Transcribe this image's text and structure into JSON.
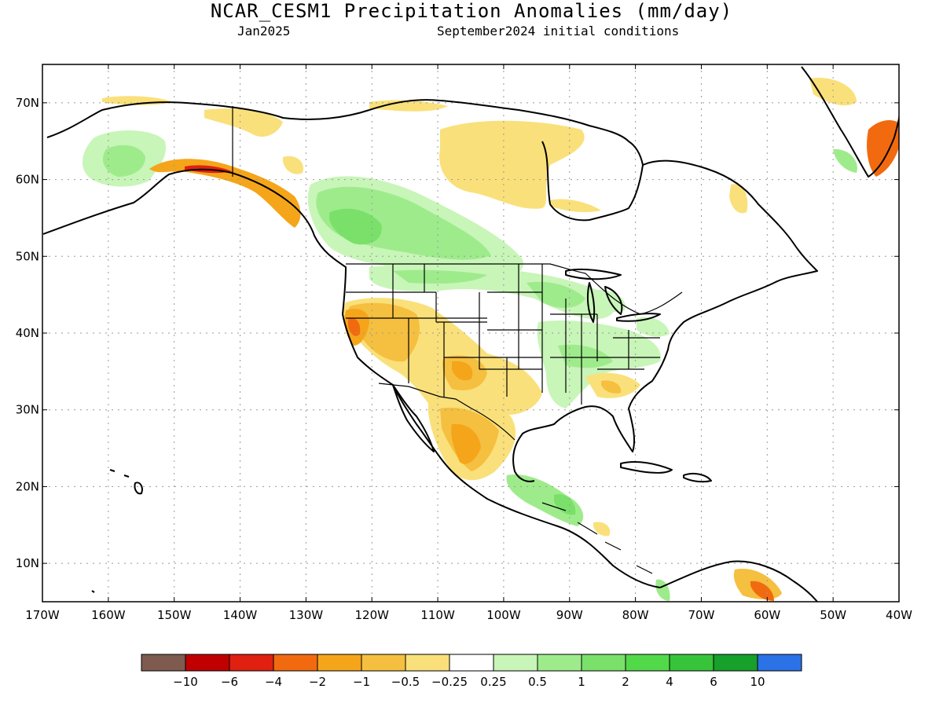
{
  "title": "NCAR_CESM1 Precipitation Anomalies (mm/day)",
  "subtitle_left": "Jan2025",
  "subtitle_right": "September2024 initial conditions",
  "map": {
    "lat_ticks": [
      "70N",
      "60N",
      "50N",
      "40N",
      "30N",
      "20N",
      "10N"
    ],
    "lon_ticks": [
      "170W",
      "160W",
      "150W",
      "140W",
      "130W",
      "120W",
      "110W",
      "100W",
      "90W",
      "80W",
      "70W",
      "60W",
      "50W",
      "40W"
    ],
    "lon_range": [
      -170,
      -40
    ],
    "lat_range": [
      5,
      75
    ]
  },
  "colorbar": {
    "colors": [
      "#7f5a4f",
      "#c00000",
      "#e02010",
      "#f26a10",
      "#f5a51a",
      "#f5bf40",
      "#fae07a",
      "#ffffff",
      "#c8f5b8",
      "#9eeb8c",
      "#7ae06a",
      "#52d94a",
      "#37c43a",
      "#17a02a",
      "#2a72e6"
    ],
    "labels": [
      "−10",
      "−6",
      "−4",
      "−2",
      "−1",
      "−0.5",
      "−0.25",
      "0.25",
      "0.5",
      "1",
      "2",
      "4",
      "6",
      "10"
    ]
  },
  "anomaly_colors": {
    "dry_light": "#fae07a",
    "dry_mid": "#f5bf40",
    "dry_strong": "#f5a51a",
    "dry_heavy": "#f26a10",
    "dry_extreme": "#e02010",
    "wet_light": "#c8f5b8",
    "wet_mid": "#9eeb8c",
    "wet_strong": "#7ae06a",
    "wet_heavy": "#52d94a"
  }
}
